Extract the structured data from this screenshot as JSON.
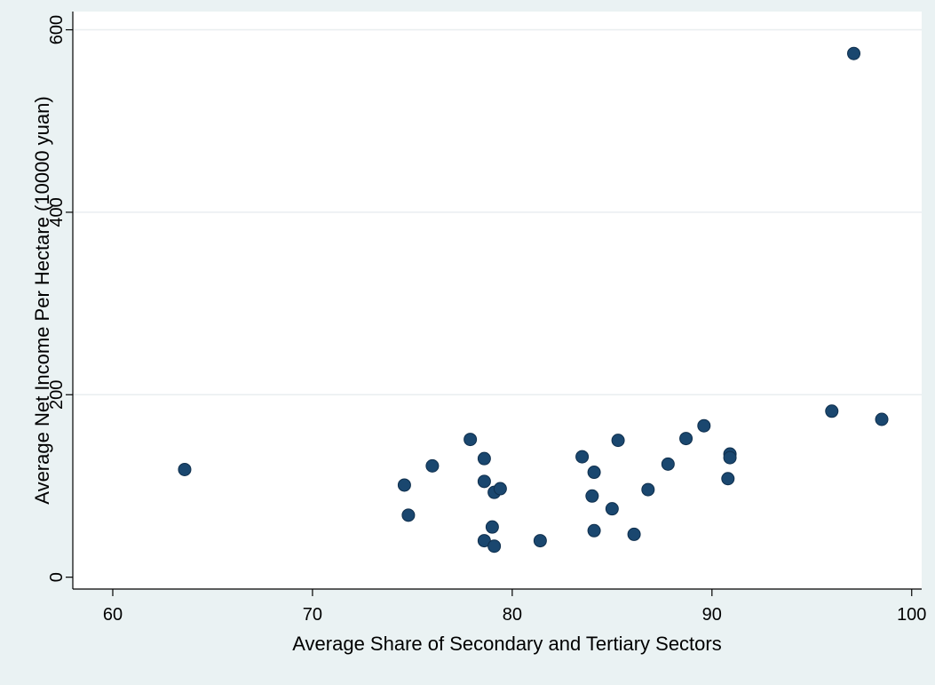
{
  "chart_data": {
    "type": "scatter",
    "title": "",
    "xlabel": "Average Share of Secondary and Tertiary Sectors",
    "ylabel": "Average Net Income Per Hectare (10000 yuan)",
    "xlim": [
      58,
      100.5
    ],
    "ylim": [
      -13,
      620
    ],
    "xticks": [
      60,
      70,
      80,
      90,
      100
    ],
    "yticks": [
      0,
      200,
      400,
      600
    ],
    "grid": true,
    "marker_color": "#1a476f",
    "background": "#eaf2f3",
    "plot_background": "#ffffff",
    "points": [
      {
        "x": 63.6,
        "y": 118
      },
      {
        "x": 74.6,
        "y": 101
      },
      {
        "x": 74.8,
        "y": 68
      },
      {
        "x": 76.0,
        "y": 122
      },
      {
        "x": 77.9,
        "y": 151
      },
      {
        "x": 78.6,
        "y": 130
      },
      {
        "x": 78.6,
        "y": 105
      },
      {
        "x": 78.6,
        "y": 40
      },
      {
        "x": 79.0,
        "y": 55
      },
      {
        "x": 79.1,
        "y": 93
      },
      {
        "x": 79.1,
        "y": 34
      },
      {
        "x": 79.4,
        "y": 97
      },
      {
        "x": 81.4,
        "y": 40
      },
      {
        "x": 83.5,
        "y": 132
      },
      {
        "x": 84.0,
        "y": 89
      },
      {
        "x": 84.1,
        "y": 115
      },
      {
        "x": 84.1,
        "y": 51
      },
      {
        "x": 85.0,
        "y": 75
      },
      {
        "x": 85.3,
        "y": 150
      },
      {
        "x": 86.1,
        "y": 47
      },
      {
        "x": 86.8,
        "y": 96
      },
      {
        "x": 87.8,
        "y": 124
      },
      {
        "x": 88.7,
        "y": 152
      },
      {
        "x": 89.6,
        "y": 166
      },
      {
        "x": 90.8,
        "y": 108
      },
      {
        "x": 90.9,
        "y": 135
      },
      {
        "x": 90.9,
        "y": 131
      },
      {
        "x": 96.0,
        "y": 182
      },
      {
        "x": 97.1,
        "y": 574
      },
      {
        "x": 98.5,
        "y": 173
      }
    ]
  }
}
